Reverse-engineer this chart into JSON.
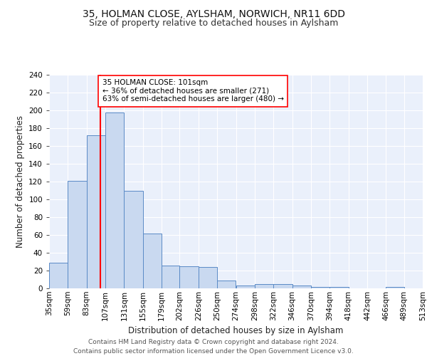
{
  "title1": "35, HOLMAN CLOSE, AYLSHAM, NORWICH, NR11 6DD",
  "title2": "Size of property relative to detached houses in Aylsham",
  "xlabel": "Distribution of detached houses by size in Aylsham",
  "ylabel": "Number of detached properties",
  "bins": [
    35,
    59,
    83,
    107,
    131,
    155,
    179,
    202,
    226,
    250,
    274,
    298,
    322,
    346,
    370,
    394,
    418,
    442,
    466,
    489,
    513
  ],
  "counts": [
    29,
    121,
    172,
    198,
    110,
    62,
    26,
    25,
    24,
    9,
    3,
    5,
    5,
    3,
    2,
    2,
    0,
    0,
    2,
    0
  ],
  "bar_color": "#c9d9f0",
  "bar_edge_color": "#5a8ac6",
  "reference_line_x": 101,
  "reference_line_color": "red",
  "annotation_text": "35 HOLMAN CLOSE: 101sqm\n← 36% of detached houses are smaller (271)\n63% of semi-detached houses are larger (480) →",
  "annotation_box_color": "white",
  "annotation_box_edge_color": "red",
  "ylim": [
    0,
    240
  ],
  "yticks": [
    0,
    20,
    40,
    60,
    80,
    100,
    120,
    140,
    160,
    180,
    200,
    220,
    240
  ],
  "tick_labels": [
    "35sqm",
    "59sqm",
    "83sqm",
    "107sqm",
    "131sqm",
    "155sqm",
    "179sqm",
    "202sqm",
    "226sqm",
    "250sqm",
    "274sqm",
    "298sqm",
    "322sqm",
    "346sqm",
    "370sqm",
    "394sqm",
    "418sqm",
    "442sqm",
    "466sqm",
    "489sqm",
    "513sqm"
  ],
  "bg_color": "#eaf0fb",
  "grid_color": "#ffffff",
  "footer_text": "Contains HM Land Registry data © Crown copyright and database right 2024.\nContains public sector information licensed under the Open Government Licence v3.0.",
  "title1_fontsize": 10,
  "title2_fontsize": 9,
  "xlabel_fontsize": 8.5,
  "ylabel_fontsize": 8.5,
  "tick_fontsize": 7.5,
  "footer_fontsize": 6.5,
  "annot_fontsize": 7.5
}
